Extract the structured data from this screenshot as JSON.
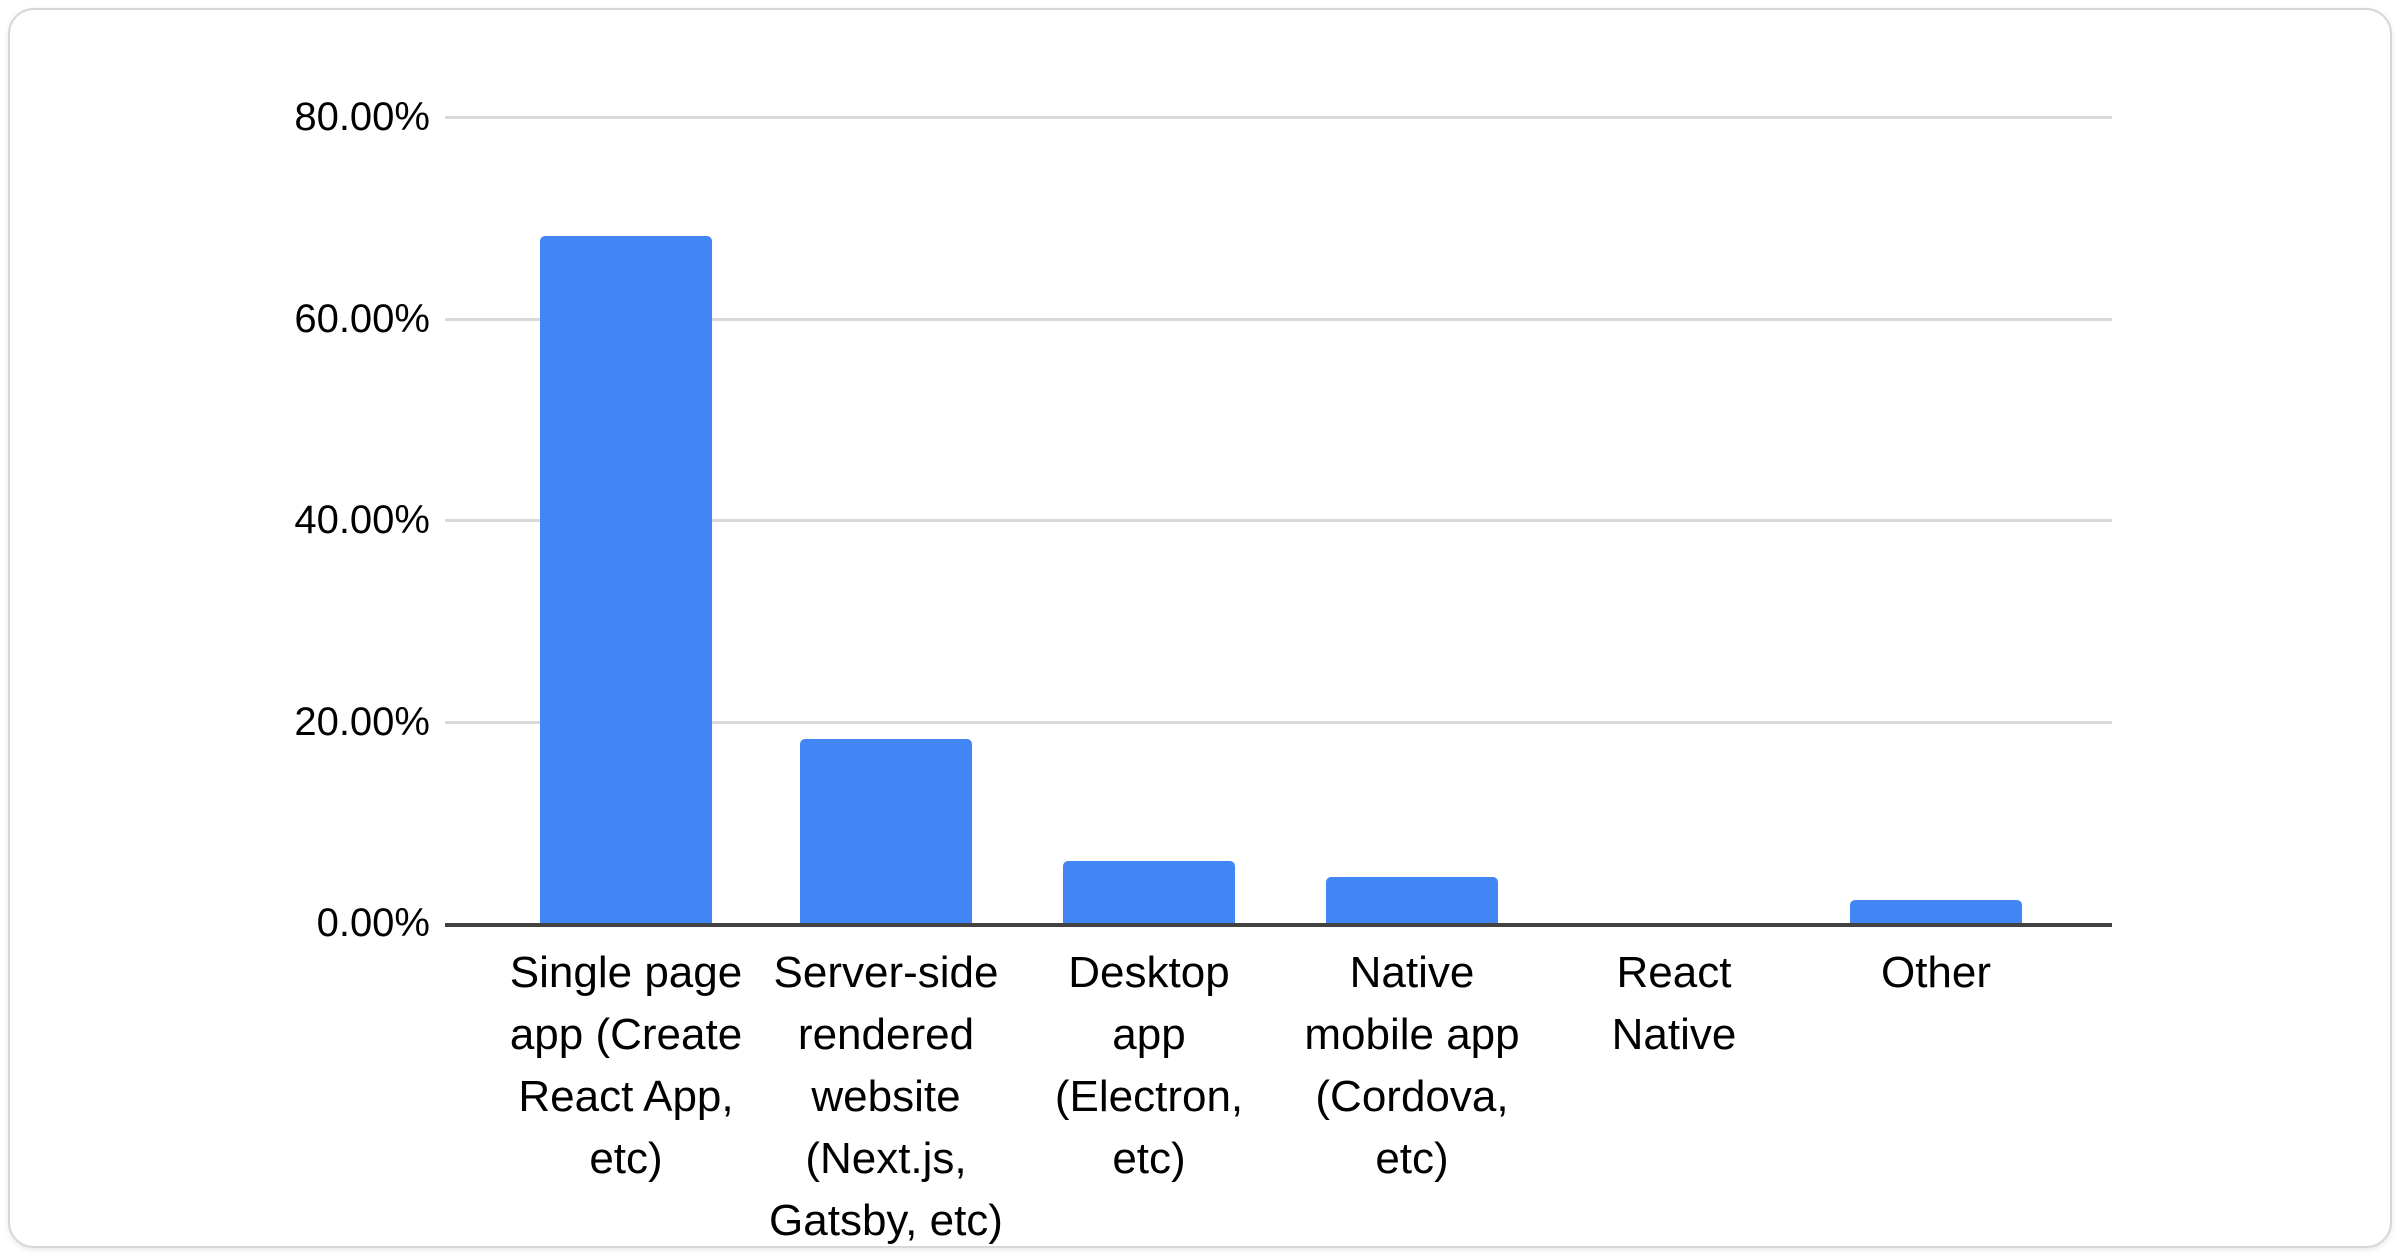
{
  "chart_data": {
    "type": "bar",
    "title": "",
    "categories": [
      "Single page app (Create React App, etc)",
      "Server-side rendered website (Next.js, Gatsby, etc)",
      "Desktop app (Electron, etc)",
      "Native mobile app (Cordova, etc)",
      "React Native",
      "Other"
    ],
    "category_lines": [
      [
        "Single page",
        "app (Create",
        "React App,",
        "etc)"
      ],
      [
        "Server-side",
        "rendered",
        "website",
        "(Next.js,",
        "Gatsby, etc)"
      ],
      [
        "Desktop",
        "app",
        "(Electron,",
        "etc)"
      ],
      [
        "Native",
        "mobile app",
        "(Cordova,",
        "etc)"
      ],
      [
        "React",
        "Native"
      ],
      [
        "Other"
      ]
    ],
    "values": [
      68.2,
      18.3,
      6.2,
      4.6,
      0,
      2.3
    ],
    "value_unit": "%",
    "series_name": "",
    "xlabel": "",
    "ylabel": "",
    "ylim": [
      0,
      80
    ],
    "y_ticks": [
      {
        "label": "80.00%",
        "value": 80
      },
      {
        "label": "60.00%",
        "value": 60
      },
      {
        "label": "40.00%",
        "value": 40
      },
      {
        "label": "20.00%",
        "value": 20
      },
      {
        "label": "0.00%",
        "value": 0
      }
    ],
    "grid": true,
    "legend": "none",
    "colors": {
      "bar": "#4285f4",
      "gridline": "#d9d9d9",
      "axis_line": "#424242",
      "text": "#000000",
      "card_background": "#ffffff",
      "card_border": "#d6d6d6"
    }
  }
}
